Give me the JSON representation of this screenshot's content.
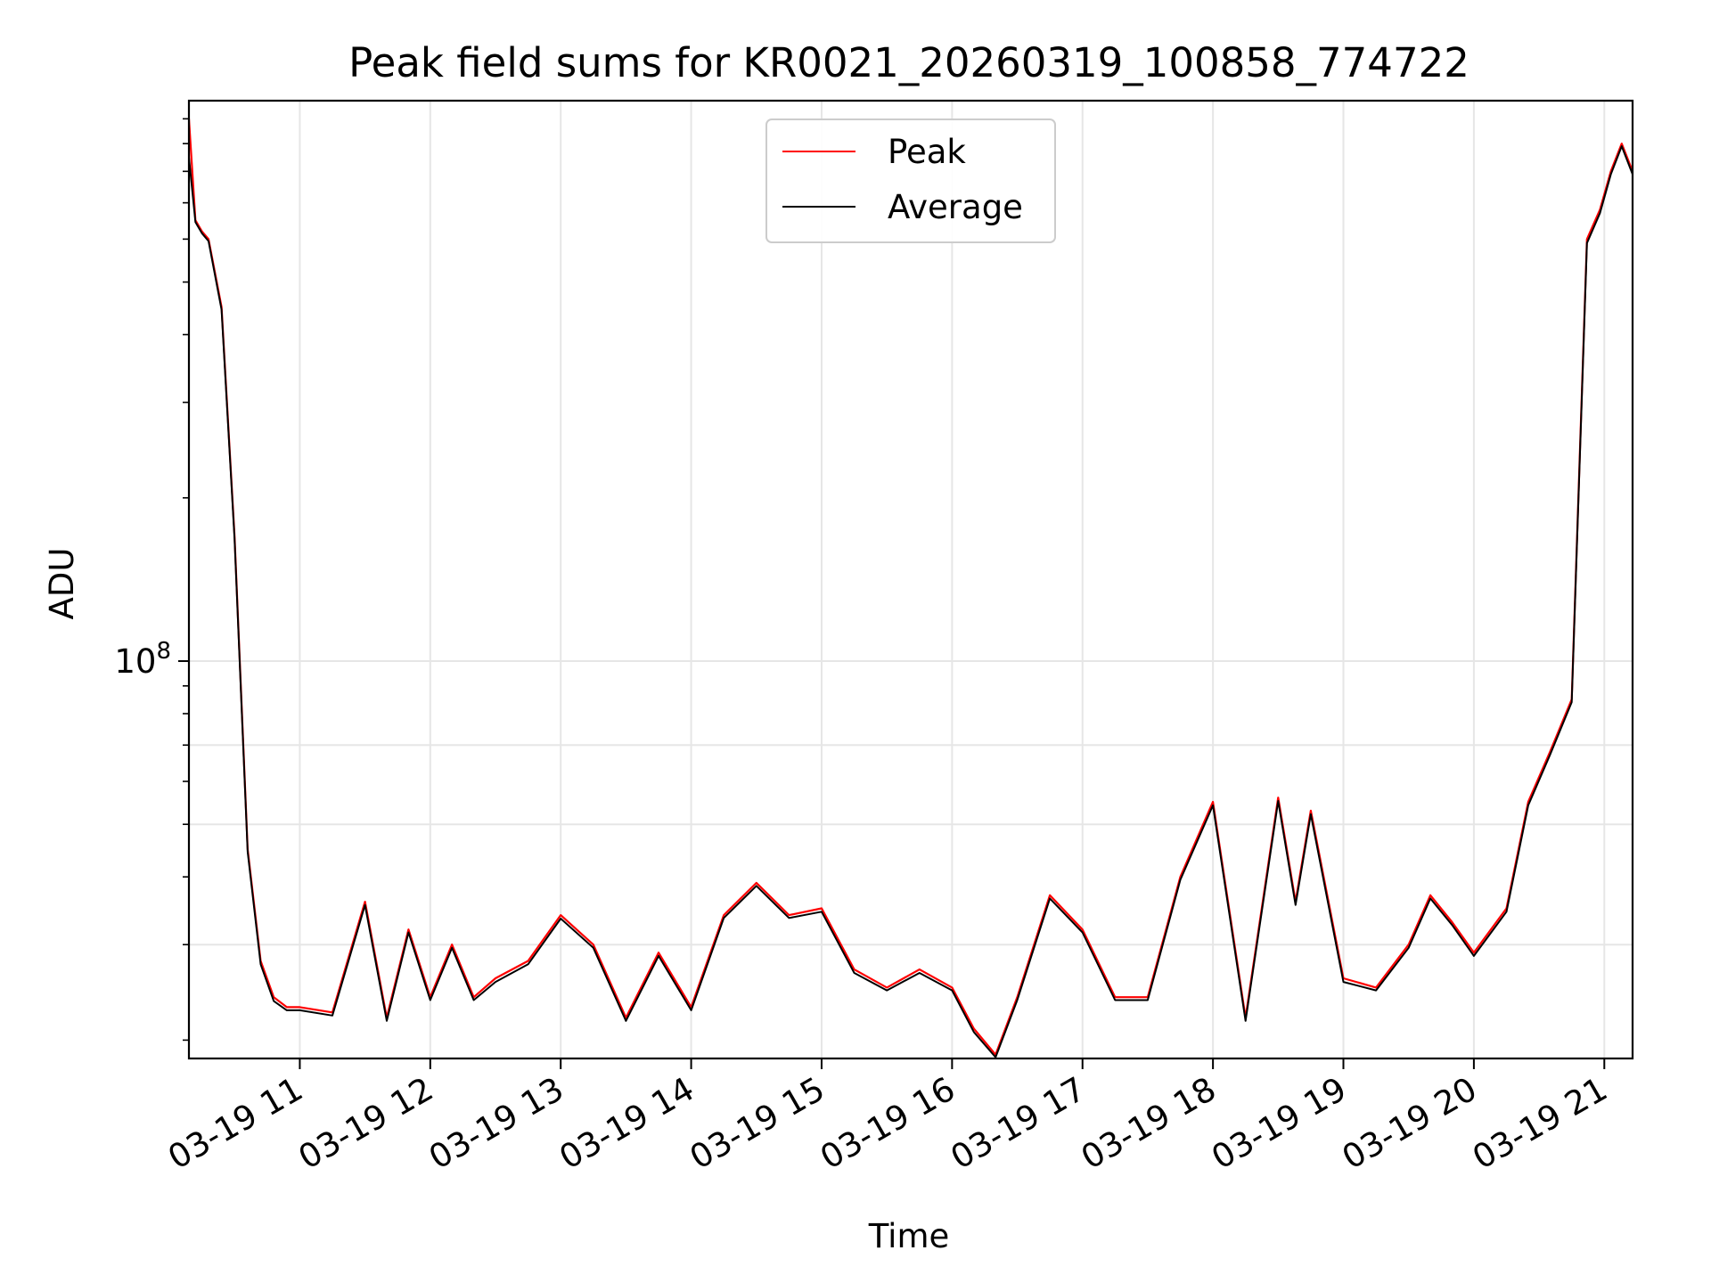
{
  "chart_data": {
    "type": "line",
    "title": "Peak field sums for KR0021_20260319_100858_774722",
    "xlabel": "Time",
    "ylabel": "ADU",
    "yscale": "log",
    "xlim": [
      "2026-03-19T10:09",
      "2026-03-19T21:13"
    ],
    "ylim": [
      18500000,
      1080000000
    ],
    "grid": true,
    "legend_position": "upper center",
    "x_tick_labels": [
      "03-19 11",
      "03-19 12",
      "03-19 13",
      "03-19 14",
      "03-19 15",
      "03-19 16",
      "03-19 17",
      "03-19 18",
      "03-19 19",
      "03-19 20",
      "03-19 21"
    ],
    "y_tick_label": {
      "base": "10",
      "exponent": "8"
    },
    "x": [
      "2026-03-19T10:09",
      "2026-03-19T10:12",
      "2026-03-19T10:15",
      "2026-03-19T10:18",
      "2026-03-19T10:24",
      "2026-03-19T10:30",
      "2026-03-19T10:36",
      "2026-03-19T10:42",
      "2026-03-19T10:48",
      "2026-03-19T10:54",
      "2026-03-19T11:00",
      "2026-03-19T11:15",
      "2026-03-19T11:30",
      "2026-03-19T11:40",
      "2026-03-19T11:50",
      "2026-03-19T12:00",
      "2026-03-19T12:10",
      "2026-03-19T12:20",
      "2026-03-19T12:30",
      "2026-03-19T12:45",
      "2026-03-19T13:00",
      "2026-03-19T13:15",
      "2026-03-19T13:30",
      "2026-03-19T13:45",
      "2026-03-19T14:00",
      "2026-03-19T14:15",
      "2026-03-19T14:30",
      "2026-03-19T14:45",
      "2026-03-19T15:00",
      "2026-03-19T15:15",
      "2026-03-19T15:30",
      "2026-03-19T15:45",
      "2026-03-19T16:00",
      "2026-03-19T16:10",
      "2026-03-19T16:20",
      "2026-03-19T16:30",
      "2026-03-19T16:45",
      "2026-03-19T17:00",
      "2026-03-19T17:15",
      "2026-03-19T17:30",
      "2026-03-19T17:45",
      "2026-03-19T18:00",
      "2026-03-19T18:15",
      "2026-03-19T18:30",
      "2026-03-19T18:38",
      "2026-03-19T18:45",
      "2026-03-19T19:00",
      "2026-03-19T19:15",
      "2026-03-19T19:30",
      "2026-03-19T19:40",
      "2026-03-19T19:50",
      "2026-03-19T20:00",
      "2026-03-19T20:15",
      "2026-03-19T20:25",
      "2026-03-19T20:35",
      "2026-03-19T20:45",
      "2026-03-19T20:52",
      "2026-03-19T20:58",
      "2026-03-19T21:03",
      "2026-03-19T21:08",
      "2026-03-19T21:13"
    ],
    "series": [
      {
        "name": "Peak",
        "color": "#ff0000",
        "values": [
          1000000000,
          650000000,
          620000000,
          600000000,
          450000000,
          170000000,
          45000000,
          28000000,
          24000000,
          23000000,
          23000000,
          22500000,
          36000000,
          22000000,
          32000000,
          24000000,
          30000000,
          24000000,
          26000000,
          28000000,
          34000000,
          30000000,
          22000000,
          29000000,
          23000000,
          34000000,
          39000000,
          34000000,
          35000000,
          27000000,
          25000000,
          27000000,
          25000000,
          21000000,
          18800000,
          24000000,
          37000000,
          32000000,
          24000000,
          24000000,
          40000000,
          55000000,
          22000000,
          56000000,
          36000000,
          53000000,
          26000000,
          25000000,
          30000000,
          37000000,
          33000000,
          29000000,
          35000000,
          55000000,
          68000000,
          85000000,
          600000000,
          680000000,
          800000000,
          900000000,
          800000000
        ]
      },
      {
        "name": "Average",
        "color": "#000000",
        "values": [
          850000000,
          645000000,
          615000000,
          595000000,
          445000000,
          168000000,
          44500000,
          27600000,
          23600000,
          22700000,
          22700000,
          22200000,
          35500000,
          21700000,
          31600000,
          23700000,
          29600000,
          23700000,
          25600000,
          27600000,
          33500000,
          29600000,
          21700000,
          28600000,
          22700000,
          33600000,
          38500000,
          33600000,
          34500000,
          26600000,
          24700000,
          26600000,
          24700000,
          20700000,
          18600000,
          23700000,
          36500000,
          31600000,
          23700000,
          23700000,
          39500000,
          54200000,
          21700000,
          55200000,
          35500000,
          52200000,
          25600000,
          24700000,
          29600000,
          36500000,
          32600000,
          28600000,
          34500000,
          54200000,
          67100000,
          84000000,
          590000000,
          670000000,
          790000000,
          890000000,
          790000000
        ]
      }
    ]
  }
}
